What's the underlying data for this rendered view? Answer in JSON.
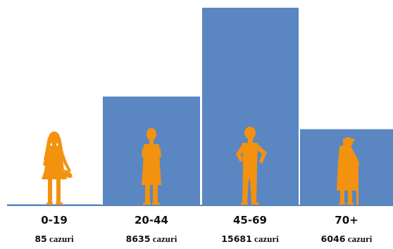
{
  "chart_data": {
    "type": "bar",
    "categories": [
      "0-19",
      "20-44",
      "45-69",
      "70+"
    ],
    "values": [
      85,
      8635,
      15681,
      6046
    ],
    "case_labels": [
      {
        "number": "85",
        "unit": "cazuri"
      },
      {
        "number": "8635",
        "unit": "cazuri"
      },
      {
        "number": "15681",
        "unit": "cazuri"
      },
      {
        "number": "6046",
        "unit": "cazuri"
      }
    ],
    "ylim": [
      0,
      15681
    ],
    "grid": false,
    "legend": "none",
    "icons": [
      "girl-silhouette-icon",
      "woman-silhouette-icon",
      "man-silhouette-icon",
      "elderly-woman-with-cane-icon"
    ],
    "colors": {
      "bar": "#5a86c2",
      "baseline": "#5a86c2",
      "icon": "#f2920f",
      "text": "#111111"
    }
  }
}
